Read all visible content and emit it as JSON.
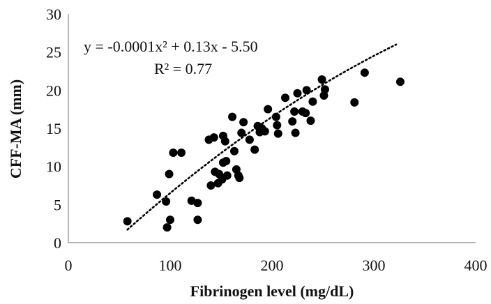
{
  "chart_data": {
    "type": "scatter",
    "xlabel": "Fibrinogen level (mg/dL)",
    "ylabel": "CFF-MA (mm)",
    "xlim": [
      0,
      400
    ],
    "ylim": [
      0,
      30
    ],
    "x_ticks": [
      "0",
      "100",
      "200",
      "300",
      "400"
    ],
    "y_ticks": [
      "0",
      "5",
      "10",
      "15",
      "20",
      "25",
      "30"
    ],
    "grid": false,
    "legend": "none",
    "marker_color": "#000000",
    "trendline": {
      "equation_text": "y = -0.0001x² + 0.13x - 5.50",
      "r2_text": "R² = 0.77",
      "a": -0.0001,
      "b": 0.13,
      "c": -5.5,
      "x_range": [
        58,
        322
      ],
      "style": "dotted"
    },
    "points": [
      [
        58,
        2.8
      ],
      [
        87,
        6.3
      ],
      [
        96,
        5.4
      ],
      [
        97,
        2.0
      ],
      [
        99,
        9.0
      ],
      [
        100,
        3.0
      ],
      [
        103,
        11.8
      ],
      [
        111,
        11.8
      ],
      [
        121,
        5.5
      ],
      [
        127,
        5.2
      ],
      [
        127,
        3.0
      ],
      [
        138,
        13.5
      ],
      [
        140,
        7.5
      ],
      [
        143,
        13.8
      ],
      [
        144,
        9.3
      ],
      [
        147,
        7.8
      ],
      [
        148,
        9.0
      ],
      [
        151,
        8.3
      ],
      [
        152,
        14.0
      ],
      [
        152,
        10.5
      ],
      [
        154,
        13.3
      ],
      [
        155,
        10.7
      ],
      [
        156,
        8.8
      ],
      [
        161,
        16.5
      ],
      [
        163,
        12.0
      ],
      [
        165,
        9.6
      ],
      [
        167,
        8.8
      ],
      [
        168,
        8.5
      ],
      [
        170,
        14.4
      ],
      [
        172,
        15.8
      ],
      [
        178,
        13.5
      ],
      [
        183,
        12.2
      ],
      [
        186,
        15.3
      ],
      [
        188,
        14.5
      ],
      [
        190,
        15.0
      ],
      [
        193,
        14.6
      ],
      [
        196,
        17.5
      ],
      [
        204,
        16.5
      ],
      [
        205,
        15.4
      ],
      [
        206,
        14.3
      ],
      [
        213,
        19.0
      ],
      [
        220,
        15.9
      ],
      [
        222,
        17.2
      ],
      [
        223,
        14.4
      ],
      [
        225,
        19.6
      ],
      [
        230,
        17.2
      ],
      [
        233,
        17.0
      ],
      [
        234,
        20.0
      ],
      [
        238,
        16.0
      ],
      [
        240,
        18.5
      ],
      [
        249,
        21.4
      ],
      [
        251,
        19.3
      ],
      [
        252,
        20.1
      ],
      [
        281,
        18.4
      ],
      [
        291,
        22.3
      ],
      [
        326,
        21.1
      ]
    ]
  }
}
